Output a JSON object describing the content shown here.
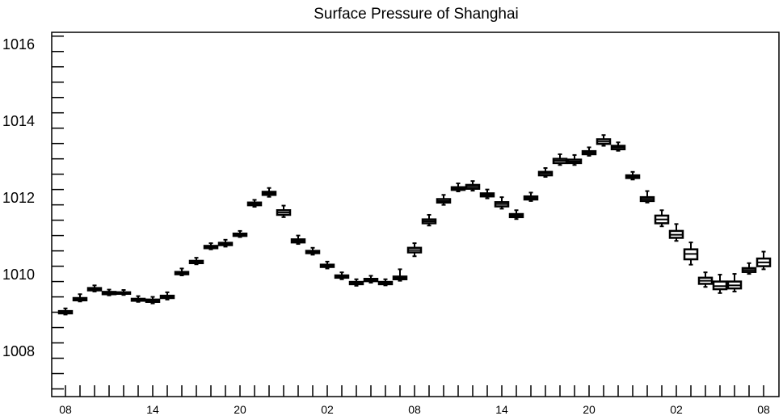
{
  "chart_data": {
    "type": "box",
    "title": "Surface Pressure of Shanghai",
    "xlabel": "",
    "ylabel": "",
    "ylim": [
      1006.8,
      1016.3
    ],
    "ytick_labels": [
      "1008",
      "1010",
      "1012",
      "1014",
      "1016"
    ],
    "ytick_values": [
      1008,
      1010,
      1012,
      1014,
      1016
    ],
    "xtick_labels": [
      "08",
      "14",
      "20",
      "02",
      "08",
      "14",
      "20",
      "02",
      "08"
    ],
    "xtick_positions": [
      0,
      6,
      12,
      18,
      24,
      30,
      36,
      42,
      48
    ],
    "grid": false,
    "boxes": [
      {
        "x": 0,
        "min": 1008.94,
        "q1": 1008.97,
        "median": 1009.0,
        "q3": 1009.03,
        "max": 1009.1
      },
      {
        "x": 1,
        "min": 1009.28,
        "q1": 1009.31,
        "median": 1009.34,
        "q3": 1009.37,
        "max": 1009.47
      },
      {
        "x": 2,
        "min": 1009.54,
        "q1": 1009.57,
        "median": 1009.6,
        "q3": 1009.63,
        "max": 1009.7
      },
      {
        "x": 3,
        "min": 1009.44,
        "q1": 1009.47,
        "median": 1009.5,
        "q3": 1009.53,
        "max": 1009.59
      },
      {
        "x": 4,
        "min": 1009.45,
        "q1": 1009.48,
        "median": 1009.5,
        "q3": 1009.52,
        "max": 1009.58
      },
      {
        "x": 5,
        "min": 1009.27,
        "q1": 1009.3,
        "median": 1009.32,
        "q3": 1009.35,
        "max": 1009.42
      },
      {
        "x": 6,
        "min": 1009.23,
        "q1": 1009.27,
        "median": 1009.3,
        "q3": 1009.33,
        "max": 1009.4
      },
      {
        "x": 7,
        "min": 1009.33,
        "q1": 1009.37,
        "median": 1009.4,
        "q3": 1009.43,
        "max": 1009.52
      },
      {
        "x": 8,
        "min": 1009.96,
        "q1": 1009.99,
        "median": 1010.02,
        "q3": 1010.05,
        "max": 1010.14
      },
      {
        "x": 9,
        "min": 1010.25,
        "q1": 1010.28,
        "median": 1010.31,
        "q3": 1010.34,
        "max": 1010.42
      },
      {
        "x": 10,
        "min": 1010.64,
        "q1": 1010.67,
        "median": 1010.7,
        "q3": 1010.73,
        "max": 1010.8
      },
      {
        "x": 11,
        "min": 1010.71,
        "q1": 1010.75,
        "median": 1010.78,
        "q3": 1010.81,
        "max": 1010.89
      },
      {
        "x": 12,
        "min": 1010.96,
        "q1": 1010.99,
        "median": 1011.02,
        "q3": 1011.05,
        "max": 1011.12
      },
      {
        "x": 13,
        "min": 1011.75,
        "q1": 1011.79,
        "median": 1011.82,
        "q3": 1011.86,
        "max": 1011.93
      },
      {
        "x": 14,
        "min": 1012.01,
        "q1": 1012.06,
        "median": 1012.1,
        "q3": 1012.14,
        "max": 1012.24
      },
      {
        "x": 15,
        "min": 1011.48,
        "q1": 1011.54,
        "median": 1011.6,
        "q3": 1011.66,
        "max": 1011.78
      },
      {
        "x": 16,
        "min": 1010.78,
        "q1": 1010.82,
        "median": 1010.86,
        "q3": 1010.9,
        "max": 1011.0
      },
      {
        "x": 17,
        "min": 1010.5,
        "q1": 1010.54,
        "median": 1010.57,
        "q3": 1010.6,
        "max": 1010.68
      },
      {
        "x": 18,
        "min": 1010.14,
        "q1": 1010.18,
        "median": 1010.21,
        "q3": 1010.24,
        "max": 1010.32
      },
      {
        "x": 19,
        "min": 1009.86,
        "q1": 1009.9,
        "median": 1009.93,
        "q3": 1009.96,
        "max": 1010.04
      },
      {
        "x": 20,
        "min": 1009.69,
        "q1": 1009.73,
        "median": 1009.76,
        "q3": 1009.79,
        "max": 1009.86
      },
      {
        "x": 21,
        "min": 1009.77,
        "q1": 1009.81,
        "median": 1009.84,
        "q3": 1009.87,
        "max": 1009.95
      },
      {
        "x": 22,
        "min": 1009.7,
        "q1": 1009.73,
        "median": 1009.76,
        "q3": 1009.79,
        "max": 1009.86
      },
      {
        "x": 23,
        "min": 1009.82,
        "q1": 1009.86,
        "median": 1009.89,
        "q3": 1009.93,
        "max": 1010.12
      },
      {
        "x": 24,
        "min": 1010.46,
        "q1": 1010.56,
        "median": 1010.62,
        "q3": 1010.68,
        "max": 1010.8
      },
      {
        "x": 25,
        "min": 1011.26,
        "q1": 1011.32,
        "median": 1011.37,
        "q3": 1011.42,
        "max": 1011.54
      },
      {
        "x": 26,
        "min": 1011.8,
        "q1": 1011.86,
        "median": 1011.9,
        "q3": 1011.95,
        "max": 1012.06
      },
      {
        "x": 27,
        "min": 1012.15,
        "q1": 1012.19,
        "median": 1012.22,
        "q3": 1012.26,
        "max": 1012.36
      },
      {
        "x": 28,
        "min": 1012.17,
        "q1": 1012.22,
        "median": 1012.27,
        "q3": 1012.32,
        "max": 1012.42
      },
      {
        "x": 29,
        "min": 1011.97,
        "q1": 1012.02,
        "median": 1012.06,
        "q3": 1012.1,
        "max": 1012.2
      },
      {
        "x": 30,
        "min": 1011.7,
        "q1": 1011.76,
        "median": 1011.82,
        "q3": 1011.87,
        "max": 1012.0
      },
      {
        "x": 31,
        "min": 1011.43,
        "q1": 1011.48,
        "median": 1011.52,
        "q3": 1011.56,
        "max": 1011.66
      },
      {
        "x": 32,
        "min": 1011.9,
        "q1": 1011.94,
        "median": 1011.98,
        "q3": 1012.02,
        "max": 1012.12
      },
      {
        "x": 33,
        "min": 1012.53,
        "q1": 1012.57,
        "median": 1012.62,
        "q3": 1012.66,
        "max": 1012.76
      },
      {
        "x": 34,
        "min": 1012.84,
        "q1": 1012.89,
        "median": 1012.95,
        "q3": 1013.0,
        "max": 1013.12
      },
      {
        "x": 35,
        "min": 1012.84,
        "q1": 1012.89,
        "median": 1012.93,
        "q3": 1012.98,
        "max": 1013.1
      },
      {
        "x": 36,
        "min": 1013.08,
        "q1": 1013.12,
        "median": 1013.16,
        "q3": 1013.2,
        "max": 1013.3
      },
      {
        "x": 37,
        "min": 1013.34,
        "q1": 1013.39,
        "median": 1013.45,
        "q3": 1013.51,
        "max": 1013.62
      },
      {
        "x": 38,
        "min": 1013.21,
        "q1": 1013.25,
        "median": 1013.3,
        "q3": 1013.34,
        "max": 1013.43
      },
      {
        "x": 39,
        "min": 1012.46,
        "q1": 1012.5,
        "median": 1012.53,
        "q3": 1012.57,
        "max": 1012.66
      },
      {
        "x": 40,
        "min": 1011.86,
        "q1": 1011.9,
        "median": 1011.95,
        "q3": 1012.0,
        "max": 1012.16
      },
      {
        "x": 41,
        "min": 1011.24,
        "q1": 1011.32,
        "median": 1011.42,
        "q3": 1011.52,
        "max": 1011.66
      },
      {
        "x": 42,
        "min": 1010.86,
        "q1": 1010.94,
        "median": 1011.02,
        "q3": 1011.12,
        "max": 1011.3
      },
      {
        "x": 43,
        "min": 1010.24,
        "q1": 1010.38,
        "median": 1010.52,
        "q3": 1010.64,
        "max": 1010.82
      },
      {
        "x": 44,
        "min": 1009.66,
        "q1": 1009.74,
        "median": 1009.82,
        "q3": 1009.9,
        "max": 1010.04
      },
      {
        "x": 45,
        "min": 1009.5,
        "q1": 1009.6,
        "median": 1009.68,
        "q3": 1009.8,
        "max": 1009.98
      },
      {
        "x": 46,
        "min": 1009.54,
        "q1": 1009.62,
        "median": 1009.7,
        "q3": 1009.8,
        "max": 1010.0
      },
      {
        "x": 47,
        "min": 1010.0,
        "q1": 1010.05,
        "median": 1010.1,
        "q3": 1010.15,
        "max": 1010.28
      },
      {
        "x": 48,
        "min": 1010.12,
        "q1": 1010.2,
        "median": 1010.3,
        "q3": 1010.4,
        "max": 1010.58
      }
    ]
  }
}
